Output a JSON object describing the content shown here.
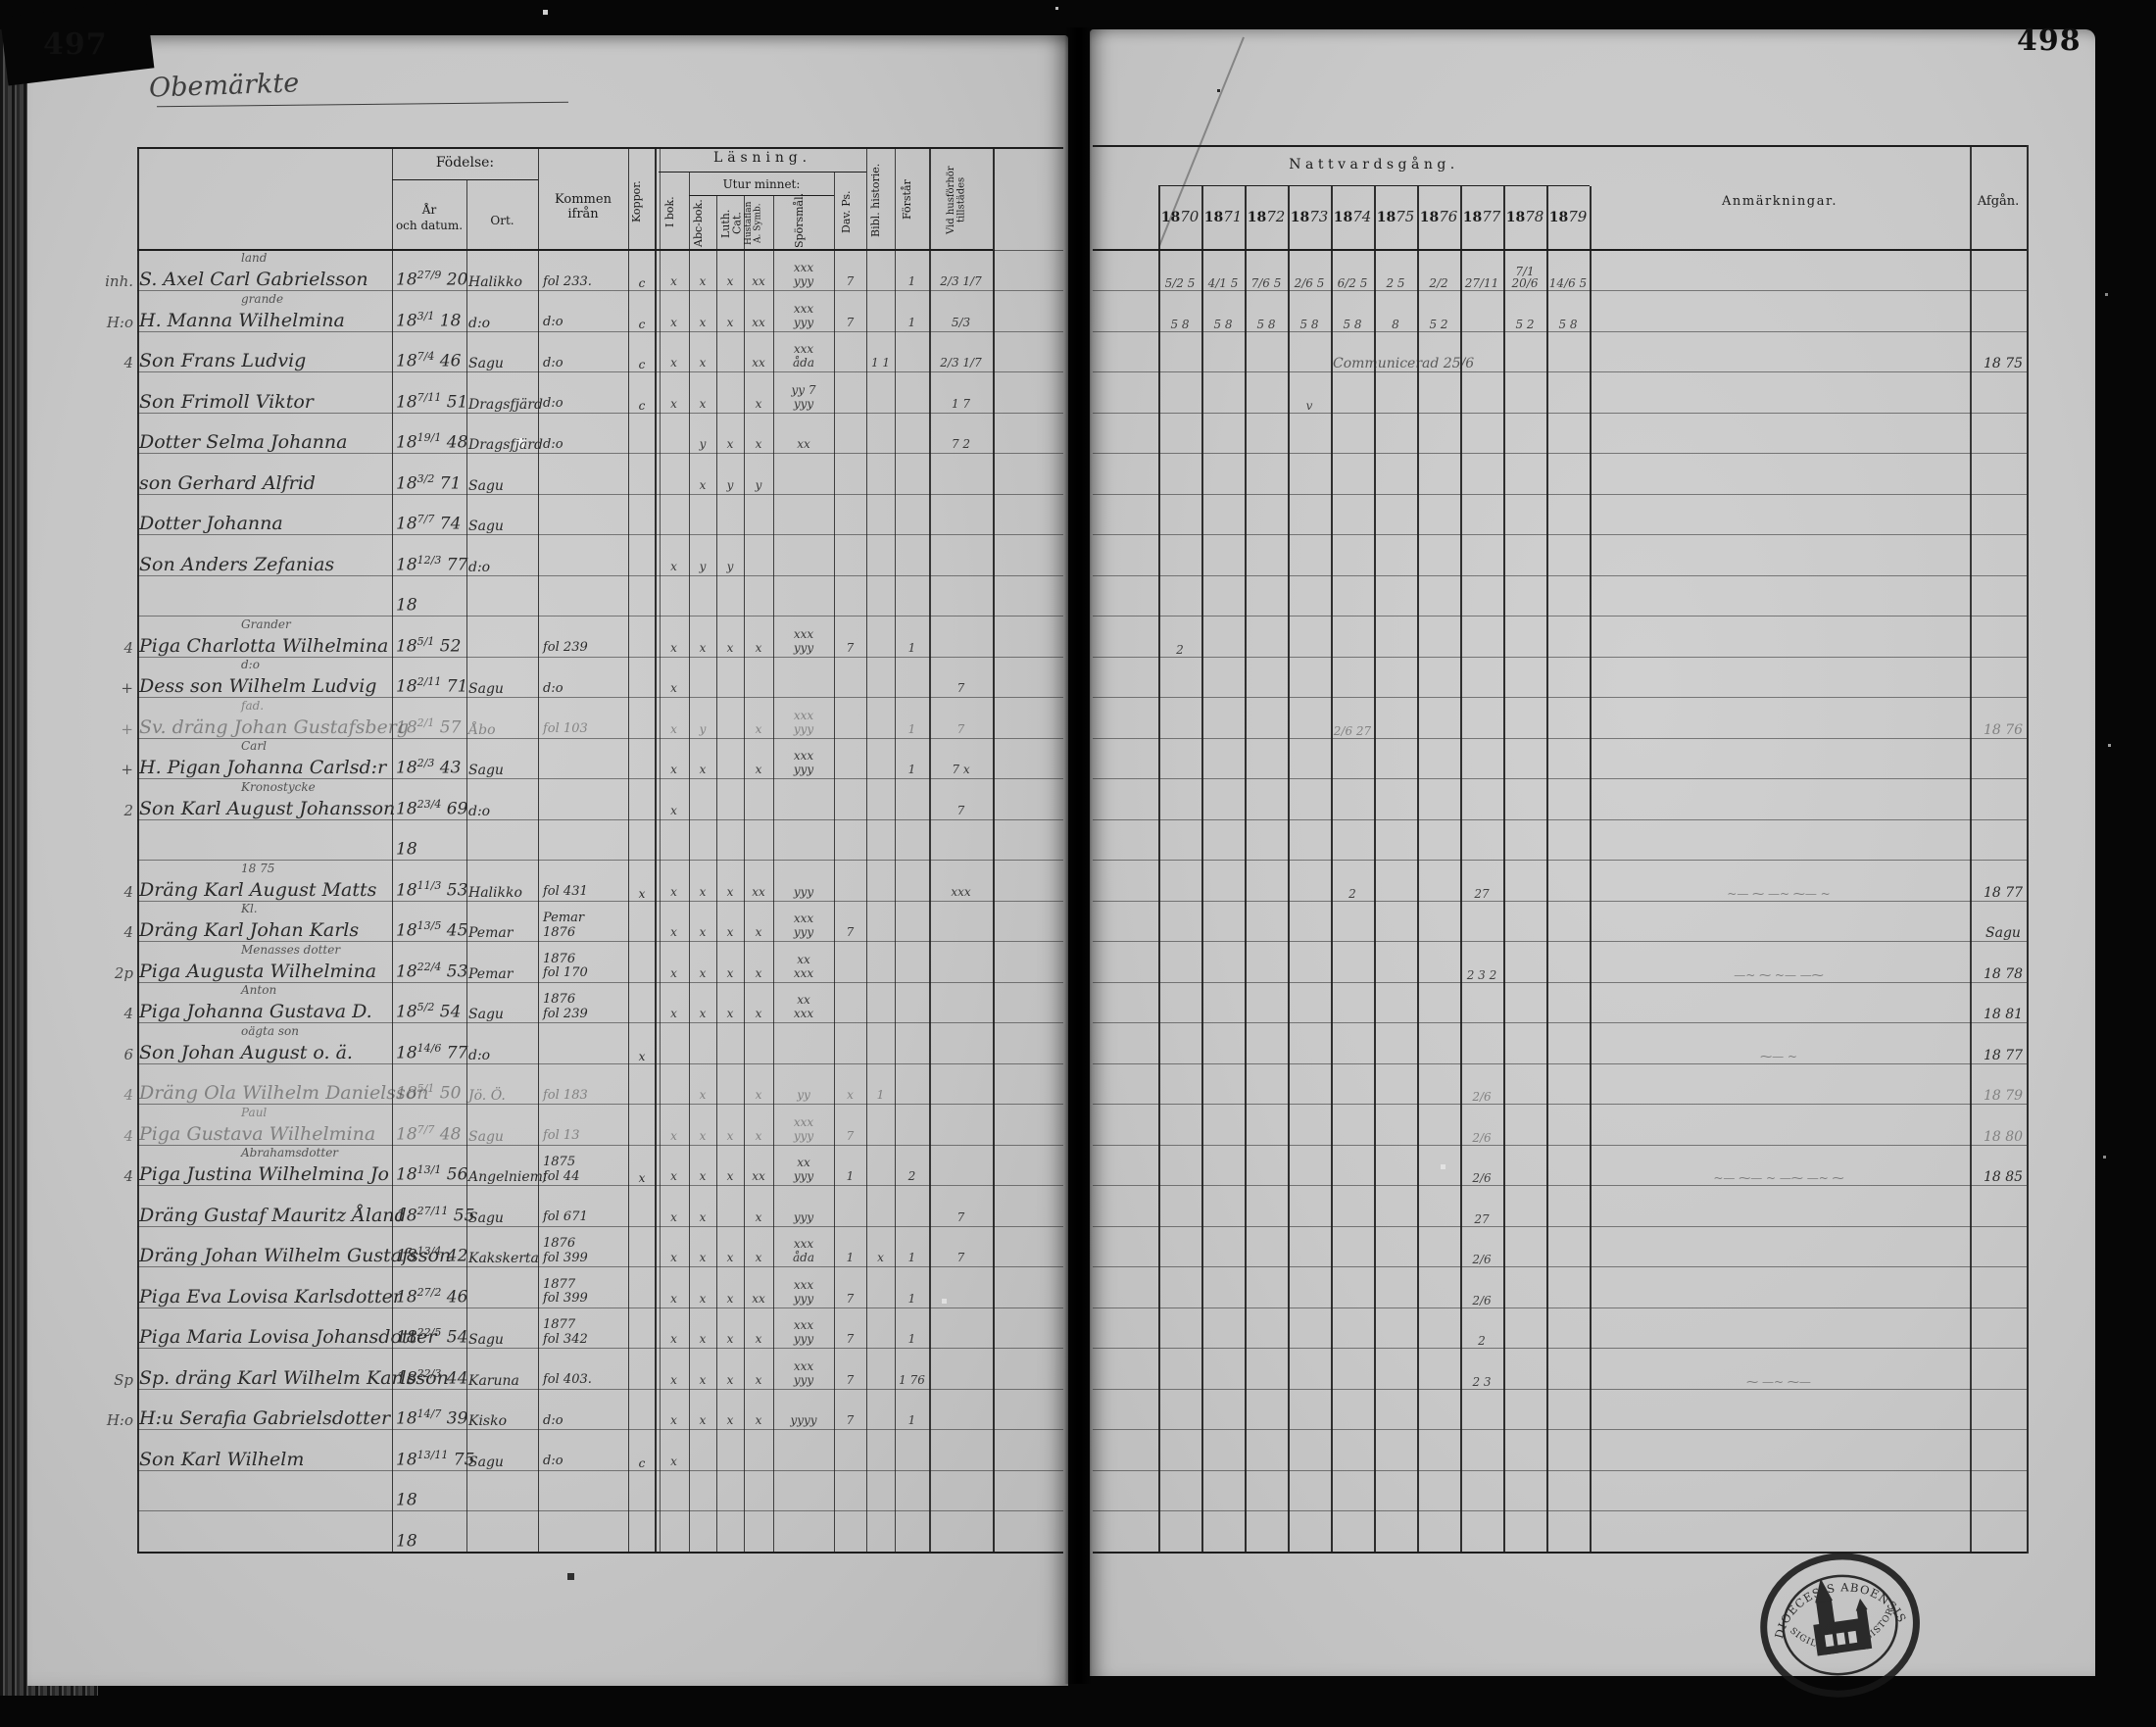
{
  "misc": {
    "century": "18"
  },
  "page_left": {
    "page_number": "497",
    "handwritten_title": "Obemärkte",
    "header": {
      "fodelse": "Födelse:",
      "ar_och_datum": "År\noch datum.",
      "ort": "Ort.",
      "kommen_ifran": "Kommen ifrån",
      "koppor": "Koppor.",
      "lasning": "Läsning.",
      "i_bok": "I bok.",
      "utur_minnet": "Utur minnet:",
      "abc_bok": "Abc-bok.",
      "luth_cat": "Luth. Cat.",
      "hustaflan": "Hustaflan A. Symb.",
      "sporsmal": "Spörsmål.",
      "dav_ps": "Dav. Ps.",
      "bibl_historie": "Bibl. historie.",
      "forstar": "Förstår",
      "vid_husforhor": "Vid husförhör tillstädes"
    }
  },
  "page_right": {
    "page_number": "498",
    "header": {
      "nattvardsgang": "Nattvardsgång.",
      "century": "18",
      "years": [
        "70",
        "71",
        "72",
        "73",
        "74",
        "75",
        "76",
        "77",
        "78",
        "79"
      ],
      "anmarkningar": "Anmärkningar.",
      "afgan": "Afgån."
    },
    "stamp": {
      "text_top": "DIOECESIS ABOENSIS",
      "text_bottom": "SIGILLUM CONSISTORII",
      "symbol": "church"
    }
  },
  "rows": [
    {
      "m": "inh.",
      "note": "land",
      "name": "S. Axel Carl Gabrielsson",
      "bf": "27/9",
      "by": "20",
      "ort": "Halikko",
      "kom": "fol 233.",
      "kop": "c",
      "marks": [
        "x",
        "x",
        "x",
        "xx",
        "xxx\nyyy",
        "7",
        "",
        "1",
        "2/3 1/7"
      ],
      "nv": [
        "5/2 5",
        "4/1 5",
        "7/6 5",
        "2/6 5",
        "6/2 5",
        "2 5",
        "2/2",
        "27/11",
        "7/1 20/6",
        "14/6 5"
      ]
    },
    {
      "m": "H:o",
      "note": "grande",
      "name": "H. Manna Wilhelmina",
      "bf": "3/1",
      "by": "18",
      "ort": "d:o",
      "kom": "d:o",
      "kop": "c",
      "marks": [
        "x",
        "x",
        "x",
        "xx",
        "xxx\nyyy",
        "7",
        "",
        "1",
        "5/3"
      ],
      "nv": [
        "5 8",
        "5 8",
        "5 8",
        "5 8",
        "5 8",
        "8",
        "5 2",
        "",
        "5 2",
        "5 8"
      ]
    },
    {
      "m": "4",
      "name": "Son Frans Ludvig",
      "bf": "7/4",
      "by": "46",
      "ort": "Sagu",
      "kom": "d:o",
      "kop": "c",
      "marks": [
        "x",
        "x",
        "",
        "xx",
        "xxx\nåda",
        "",
        "1 1",
        "",
        "2/3 1/7"
      ],
      "spnote": "Communicerad 25/6",
      "afg": "18 75"
    },
    {
      "m": "",
      "name": "Son Frimoll Viktor",
      "bf": "7/11",
      "by": "51",
      "ort": "Dragsfjärd",
      "kom": "d:o",
      "kop": "c",
      "marks": [
        "x",
        "x",
        "",
        "x",
        "yy 7\nyyy",
        "",
        "",
        "",
        "1 7"
      ],
      "nv": [
        "",
        "",
        "",
        "v",
        "",
        "",
        "",
        "",
        "",
        ""
      ]
    },
    {
      "m": "",
      "name": "Dotter Selma Johanna",
      "bf": "19/1",
      "by": "48",
      "ort": "Dragsfjärd",
      "kom": "d:o",
      "marks": [
        "",
        "y",
        "x",
        "x",
        "xx",
        "",
        "",
        "",
        "7 2"
      ]
    },
    {
      "m": "",
      "name": "son Gerhard Alfrid",
      "bf": "3/2",
      "by": "71",
      "ort": "Sagu",
      "marks": [
        "",
        "x",
        "y",
        "y",
        "",
        "",
        "",
        "",
        ""
      ]
    },
    {
      "m": "",
      "name": "Dotter Johanna",
      "bf": "7/7",
      "by": "74",
      "ort": "Sagu"
    },
    {
      "m": "",
      "name": "Son Anders Zefanias",
      "bf": "12/3",
      "by": "77",
      "ort": "d:o",
      "marks": [
        "x",
        "y",
        "y",
        "",
        "",
        "",
        "",
        "",
        ""
      ]
    },
    {},
    {
      "m": "4",
      "note": "Grander",
      "name": "Piga Charlotta Wilhelmina",
      "bf": "5/1",
      "by": "52",
      "kom": "fol 239",
      "marks": [
        "x",
        "x",
        "x",
        "x",
        "xxx\nyyy",
        "7",
        "",
        "1",
        ""
      ],
      "nv": [
        "2",
        "",
        "",
        "",
        "",
        "",
        "",
        "",
        "",
        ""
      ]
    },
    {
      "m": "+",
      "note": "d:o",
      "name": "Dess son Wilhelm Ludvig",
      "bf": "2/11",
      "by": "71",
      "ort": "Sagu",
      "kom": "d:o",
      "marks": [
        "x",
        "",
        "",
        "",
        "",
        "",
        "",
        "",
        "7"
      ]
    },
    {
      "m": "+",
      "note": "fad.",
      "name": "Sv. dräng Johan Gustafsberg",
      "bf": "2/1",
      "by": "57",
      "ort": "Åbo",
      "kom": "fol 103",
      "marks": [
        "x",
        "y",
        "",
        "x",
        "xxx\nyyy",
        "",
        "",
        "1",
        "7"
      ],
      "nv": [
        "",
        "",
        "",
        "",
        "2/6 27",
        "",
        "",
        "",
        "",
        ""
      ],
      "afg": "18 76",
      "dim": true
    },
    {
      "m": "+",
      "note": "Carl",
      "name": "H. Pigan Johanna Carlsd:r",
      "bf": "2/3",
      "by": "43",
      "ort": "Sagu",
      "marks": [
        "x",
        "x",
        "",
        "x",
        "xxx\nyyy",
        "",
        "",
        "1",
        "7 x"
      ]
    },
    {
      "m": "2",
      "note": "Kronostycke",
      "name": "Son Karl August Johansson",
      "bf": "23/4",
      "by": "69",
      "ort": "d:o",
      "marks": [
        "x",
        "",
        "",
        "",
        "",
        "",
        "",
        "",
        "7"
      ]
    },
    {},
    {
      "m": "4",
      "note": "18 75",
      "name": "Dräng Karl August Matts",
      "bf": "11/3",
      "by": "53",
      "ort": "Halikko",
      "kom": "fol 431",
      "kop": "x",
      "marks": [
        "x",
        "x",
        "x",
        "xx",
        "yyy",
        "",
        "",
        "",
        "xxx"
      ],
      "nv": [
        "",
        "",
        "",
        "",
        "2",
        "",
        "",
        "27",
        "",
        ""
      ],
      "anm": "~— ⁓ —~ ⁓— ~",
      "afg": "18 77"
    },
    {
      "m": "4",
      "note": "Kl.",
      "name": "Dräng Karl Johan Karls",
      "bf": "13/5",
      "by": "45",
      "ort": "Pemar",
      "kom": "Pemar\n1876",
      "marks": [
        "x",
        "x",
        "x",
        "x",
        "xxx\nyyy",
        "7",
        "",
        "",
        ""
      ],
      "afg": "Sagu"
    },
    {
      "m": "2p",
      "note": "Menasses dotter",
      "name": "Piga Augusta Wilhelmina",
      "bf": "22/4",
      "by": "53",
      "ort": "Pemar",
      "kom": "1876\nfol 170",
      "marks": [
        "x",
        "x",
        "x",
        "x",
        "xx\nxxx",
        "",
        "",
        "",
        ""
      ],
      "nv": [
        "",
        "",
        "",
        "",
        "",
        "",
        "",
        "2 3 2",
        "",
        ""
      ],
      "anm": "—~ ⁓ ~— —⁓",
      "afg": "18 78"
    },
    {
      "m": "4",
      "note": "Anton",
      "name": "Piga Johanna Gustava D.",
      "bf": "5/2",
      "by": "54",
      "ort": "Sagu",
      "kom": "1876\nfol 239",
      "marks": [
        "x",
        "x",
        "x",
        "x",
        "xx\nxxx",
        "",
        "",
        "",
        ""
      ],
      "afg": "18 81"
    },
    {
      "m": "6",
      "note": "oägta son",
      "name": "Son Johan August o. ä.",
      "bf": "14/6",
      "by": "77",
      "ort": "d:o",
      "kop": "x",
      "anm": "⁓— ~",
      "afg": "18 77"
    },
    {
      "m": "4",
      "name": "Dräng Ola Wilhelm Danielsson",
      "bf": "5/1",
      "by": "50",
      "ort": "Jö. Ö.",
      "kom": "fol 183",
      "marks": [
        "",
        "x",
        "",
        "x",
        "yy",
        "x",
        "1",
        "",
        ""
      ],
      "nv": [
        "",
        "",
        "",
        "",
        "",
        "",
        "",
        "2/6",
        "",
        ""
      ],
      "afg": "18 79",
      "dim": true
    },
    {
      "m": "4",
      "note": "Paul",
      "name": "Piga Gustava Wilhelmina",
      "bf": "7/7",
      "by": "48",
      "ort": "Sagu",
      "kom": "fol 13",
      "marks": [
        "x",
        "x",
        "x",
        "x",
        "xxx\nyyy",
        "7",
        "",
        "",
        ""
      ],
      "nv": [
        "",
        "",
        "",
        "",
        "",
        "",
        "",
        "2/6",
        "",
        ""
      ],
      "afg": "18 80",
      "dim": true
    },
    {
      "m": "4",
      "note": "Abrahamsdotter",
      "name": "Piga Justina Wilhelmina Jo",
      "bf": "13/1",
      "by": "56",
      "ort": "Angelniemi",
      "kom": "1875\nfol 44",
      "kop": "x",
      "marks": [
        "x",
        "x",
        "x",
        "xx",
        "xx\nyyy",
        "1",
        "",
        "2",
        ""
      ],
      "nv": [
        "",
        "",
        "",
        "",
        "",
        "",
        "",
        "2/6",
        "",
        ""
      ],
      "anm": "~— ⁓— ~ —⁓ —~ ⁓",
      "afg": "18 85"
    },
    {
      "m": "",
      "name": "Dräng Gustaf Mauritz Åland",
      "bf": "27/11",
      "by": "55",
      "ort": "Sagu",
      "kom": "fol 671",
      "marks": [
        "x",
        "x",
        "",
        "x",
        "yyy",
        "",
        "",
        "",
        "7"
      ],
      "nv": [
        "",
        "",
        "",
        "",
        "",
        "",
        "",
        "27",
        "",
        ""
      ]
    },
    {
      "m": "",
      "name": "Dräng Johan Wilhelm Gustafsson",
      "bf": "13/4",
      "by": "42",
      "ort": "Kakskerta",
      "kom": "1876\nfol 399",
      "marks": [
        "x",
        "x",
        "x",
        "x",
        "xxx\nåda",
        "1",
        "x",
        "1",
        "7"
      ],
      "nv": [
        "",
        "",
        "",
        "",
        "",
        "",
        "",
        "2/6",
        "",
        ""
      ]
    },
    {
      "m": "",
      "name": "Piga Eva Lovisa Karlsdotter",
      "bf": "27/2",
      "by": "46",
      "kom": "1877\nfol 399",
      "marks": [
        "x",
        "x",
        "x",
        "xx",
        "xxx\nyyy",
        "7",
        "",
        "1",
        ""
      ],
      "nv": [
        "",
        "",
        "",
        "",
        "",
        "",
        "",
        "2/6",
        "",
        ""
      ]
    },
    {
      "m": "",
      "name": "Piga Maria Lovisa Johansdotter",
      "bf": "22/5",
      "by": "54",
      "ort": "Sagu",
      "kom": "1877\nfol 342",
      "marks": [
        "x",
        "x",
        "x",
        "x",
        "xxx\nyyy",
        "7",
        "",
        "1",
        ""
      ],
      "nv": [
        "",
        "",
        "",
        "",
        "",
        "",
        "",
        "2",
        "",
        ""
      ]
    },
    {
      "m": "Sp",
      "name": "Sp. dräng Karl Wilhelm Karlsson",
      "bf": "22/3",
      "by": "44",
      "ort": "Karuna",
      "kom": "fol 403.",
      "marks": [
        "x",
        "x",
        "x",
        "x",
        "xxx\nyyy",
        "7",
        "",
        "1 76",
        ""
      ],
      "nv": [
        "",
        "",
        "",
        "",
        "",
        "",
        "",
        "2 3",
        "",
        ""
      ],
      "anm": "⁓ —~ ⁓—"
    },
    {
      "m": "H:o",
      "name": "H:u Serafia Gabrielsdotter",
      "bf": "14/7",
      "by": "39",
      "ort": "Kisko",
      "kom": "d:o",
      "marks": [
        "x",
        "x",
        "x",
        "x",
        "yyyy",
        "7",
        "",
        "1",
        ""
      ]
    },
    {
      "m": "",
      "name": "Son Karl Wilhelm",
      "bf": "13/11",
      "by": "75",
      "ort": "Sagu",
      "kom": "d:o",
      "kop": "c",
      "marks": [
        "x",
        "",
        "",
        "",
        "",
        "",
        "",
        "",
        ""
      ]
    },
    {},
    {}
  ]
}
